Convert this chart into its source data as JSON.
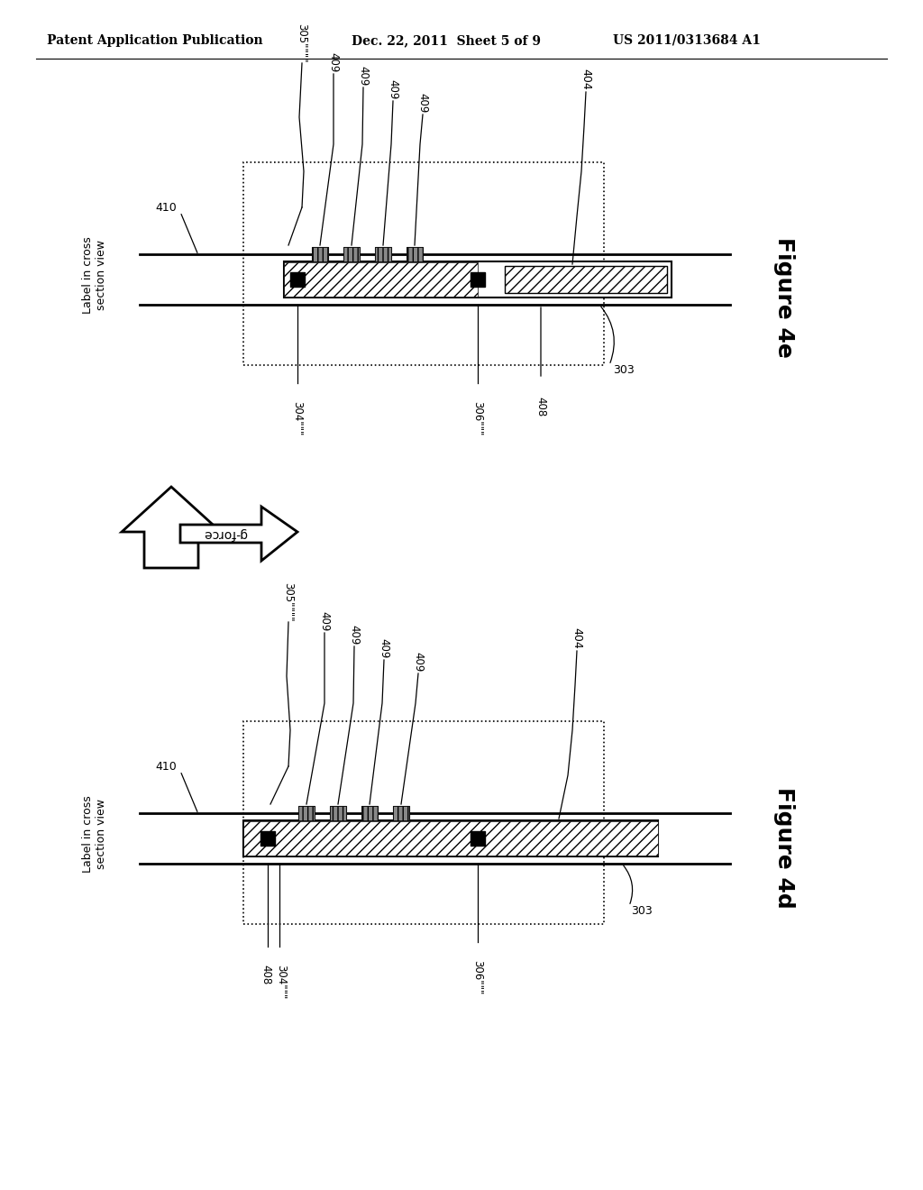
{
  "bg_color": "#ffffff",
  "header_text1": "Patent Application Publication",
  "header_text2": "Dec. 22, 2011  Sheet 5 of 9",
  "header_text3": "US 2011/0313684 A1",
  "fig_e_label": "Figure 4e",
  "fig_d_label": "Figure 4d",
  "label_cross_section": "Label in cross\nsection view",
  "ref_305_e": "305\"\"\"\"",
  "ref_409": [
    "409",
    "409",
    "409",
    "409"
  ],
  "ref_404": "404",
  "ref_410": "410",
  "ref_304_e": "304\"\"\"",
  "ref_306_e": "306\"\"\"",
  "ref_303": "303",
  "ref_408": "408",
  "ref_305_d": "305\"\"\"\"",
  "ref_304_d": "304\"\"\"",
  "ref_306_d": "306\"\"\""
}
